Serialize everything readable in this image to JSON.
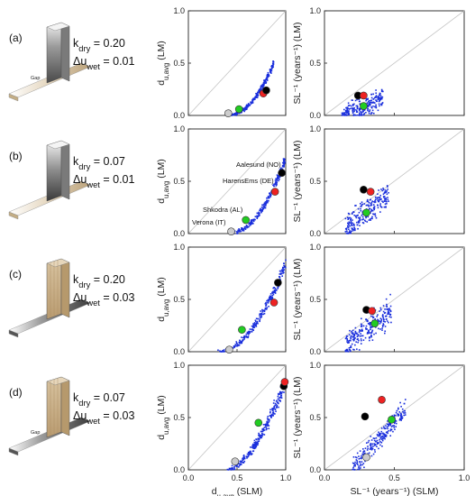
{
  "figure": {
    "rows": [
      {
        "label": "(a)",
        "k_dry": "k<sub>dry</sub> = 0.20",
        "du_wet": "Δu<sub>wet</sub> = 0.01",
        "k_text": "k",
        "k_sub": "dry",
        "k_val": " = 0.20",
        "du_text": "Δu",
        "du_sub": "wet",
        "du_val": " = 0.01",
        "gap_label": "Gap",
        "wall_color": "#666666",
        "bar_color": "#d4c4a4"
      },
      {
        "label": "(b)",
        "k_text": "k",
        "k_sub": "dry",
        "k_val": " = 0.07",
        "du_text": "Δu",
        "du_sub": "wet",
        "du_val": " = 0.01",
        "gap_label": "",
        "wall_color": "#777777",
        "bar_color": "#d4c4a4"
      },
      {
        "label": "(c)",
        "k_text": "k",
        "k_sub": "dry",
        "k_val": " = 0.20",
        "du_text": "Δu",
        "du_sub": "wet",
        "du_val": " = 0.03",
        "gap_label": "",
        "wall_color": "#c8ad86",
        "bar_color": "#8a8a8a"
      },
      {
        "label": "(d)",
        "k_text": "k",
        "k_sub": "dry",
        "k_val": " = 0.07",
        "du_text": "Δu",
        "du_sub": "wet",
        "du_val": " = 0.03",
        "gap_label": "Gap",
        "wall_color": "#c8ad86",
        "bar_color": "#8a8a8a"
      }
    ],
    "axes": {
      "left_ylabel_main": "d",
      "left_ylabel_sub": "u,avg",
      "left_ylabel_suffix": " (LM)",
      "left_xlabel_main": "d",
      "left_xlabel_sub": "u,avg",
      "left_xlabel_suffix": " (SLM)",
      "right_ylabel": "SL⁻¹ (years⁻¹) (LM)",
      "right_xlabel": "SL⁻¹ (years⁻¹) (SLM)",
      "ticks": [
        "0.0",
        "0.5",
        "1.0"
      ]
    },
    "annotations": {
      "aalesund": "Aalesund (NO)",
      "harensems": "HarensEms (DE)",
      "shkodra": "Shkodra (AL)",
      "verona": "Verona (IT)"
    }
  },
  "chart_data": [
    {
      "type": "scatter",
      "panel": "a-left",
      "xlabel": "d_u,avg (SLM)",
      "ylabel": "d_u,avg (LM)",
      "xlim": [
        0,
        1
      ],
      "ylim": [
        0,
        1
      ],
      "highlighted": [
        {
          "color": "#cccccc",
          "x": 0.41,
          "y": 0.02
        },
        {
          "color": "#22cc22",
          "x": 0.52,
          "y": 0.06
        },
        {
          "color": "#ee2222",
          "x": 0.77,
          "y": 0.21
        },
        {
          "color": "#000000",
          "x": 0.8,
          "y": 0.24
        }
      ],
      "cloud": {
        "xmin": 0.4,
        "xmax": 0.88,
        "curve": "a"
      }
    },
    {
      "type": "scatter",
      "panel": "a-right",
      "xlabel": "SL^-1 (years^-1) (SLM)",
      "ylabel": "SL^-1 (years^-1) (LM)",
      "xlim": [
        0,
        1
      ],
      "ylim": [
        0,
        1
      ],
      "highlighted": [
        {
          "color": "#000000",
          "x": 0.24,
          "y": 0.19
        },
        {
          "color": "#ee2222",
          "x": 0.28,
          "y": 0.19
        },
        {
          "color": "#22cc22",
          "x": 0.28,
          "y": 0.09
        }
      ],
      "cloud": {
        "xmin": 0.12,
        "xmax": 0.42,
        "curve": "ra"
      }
    },
    {
      "type": "scatter",
      "panel": "b-left",
      "xlabel": "d_u,avg (SLM)",
      "ylabel": "d_u,avg (LM)",
      "xlim": [
        0,
        1
      ],
      "ylim": [
        0,
        1
      ],
      "highlighted": [
        {
          "color": "#cccccc",
          "x": 0.44,
          "y": 0.02,
          "label": "Verona (IT)"
        },
        {
          "color": "#22cc22",
          "x": 0.59,
          "y": 0.13,
          "label": "Shkodra (AL)"
        },
        {
          "color": "#ee2222",
          "x": 0.89,
          "y": 0.4,
          "label": "HarensEms (DE)"
        },
        {
          "color": "#000000",
          "x": 0.96,
          "y": 0.58,
          "label": "Aalesund (NO)"
        }
      ],
      "cloud": {
        "xmin": 0.42,
        "xmax": 1.0,
        "curve": "b"
      }
    },
    {
      "type": "scatter",
      "panel": "b-right",
      "xlabel": "SL^-1 (years^-1) (SLM)",
      "ylabel": "SL^-1 (years^-1) (LM)",
      "xlim": [
        0,
        1
      ],
      "ylim": [
        0,
        1
      ],
      "highlighted": [
        {
          "color": "#000000",
          "x": 0.28,
          "y": 0.42
        },
        {
          "color": "#ee2222",
          "x": 0.33,
          "y": 0.4
        },
        {
          "color": "#22cc22",
          "x": 0.3,
          "y": 0.2
        }
      ],
      "cloud": {
        "xmin": 0.15,
        "xmax": 0.46,
        "curve": "rb"
      }
    },
    {
      "type": "scatter",
      "panel": "c-left",
      "xlabel": "d_u,avg (SLM)",
      "ylabel": "d_u,avg (LM)",
      "xlim": [
        0,
        1
      ],
      "ylim": [
        0,
        1
      ],
      "highlighted": [
        {
          "color": "#cccccc",
          "x": 0.42,
          "y": 0.02
        },
        {
          "color": "#22cc22",
          "x": 0.55,
          "y": 0.21
        },
        {
          "color": "#ee2222",
          "x": 0.88,
          "y": 0.47
        },
        {
          "color": "#000000",
          "x": 0.92,
          "y": 0.66
        }
      ],
      "cloud": {
        "xmin": 0.3,
        "xmax": 1.0,
        "curve": "c"
      }
    },
    {
      "type": "scatter",
      "panel": "c-right",
      "xlabel": "SL^-1 (years^-1) (SLM)",
      "ylabel": "SL^-1 (years^-1) (LM)",
      "xlim": [
        0,
        1
      ],
      "ylim": [
        0,
        1
      ],
      "highlighted": [
        {
          "color": "#000000",
          "x": 0.3,
          "y": 0.4
        },
        {
          "color": "#ee2222",
          "x": 0.34,
          "y": 0.39
        },
        {
          "color": "#22cc22",
          "x": 0.36,
          "y": 0.27
        }
      ],
      "cloud": {
        "xmin": 0.15,
        "xmax": 0.48,
        "curve": "rc"
      }
    },
    {
      "type": "scatter",
      "panel": "d-left",
      "xlabel": "d_u,avg (SLM)",
      "ylabel": "d_u,avg (LM)",
      "xlim": [
        0,
        1
      ],
      "ylim": [
        0,
        1
      ],
      "highlighted": [
        {
          "color": "#cccccc",
          "x": 0.48,
          "y": 0.08
        },
        {
          "color": "#22cc22",
          "x": 0.72,
          "y": 0.45
        },
        {
          "color": "#000000",
          "x": 0.98,
          "y": 0.8
        },
        {
          "color": "#ee2222",
          "x": 0.99,
          "y": 0.84
        }
      ],
      "cloud": {
        "xmin": 0.4,
        "xmax": 1.0,
        "curve": "d"
      }
    },
    {
      "type": "scatter",
      "panel": "d-right",
      "xlabel": "SL^-1 (years^-1) (SLM)",
      "ylabel": "SL^-1 (years^-1) (LM)",
      "xlim": [
        0,
        1
      ],
      "ylim": [
        0,
        1
      ],
      "highlighted": [
        {
          "color": "#cccccc",
          "x": 0.3,
          "y": 0.12
        },
        {
          "color": "#000000",
          "x": 0.29,
          "y": 0.51
        },
        {
          "color": "#ee2222",
          "x": 0.41,
          "y": 0.67
        },
        {
          "color": "#22cc22",
          "x": 0.48,
          "y": 0.48
        }
      ],
      "cloud": {
        "xmin": 0.2,
        "xmax": 0.58,
        "curve": "rd"
      }
    }
  ]
}
